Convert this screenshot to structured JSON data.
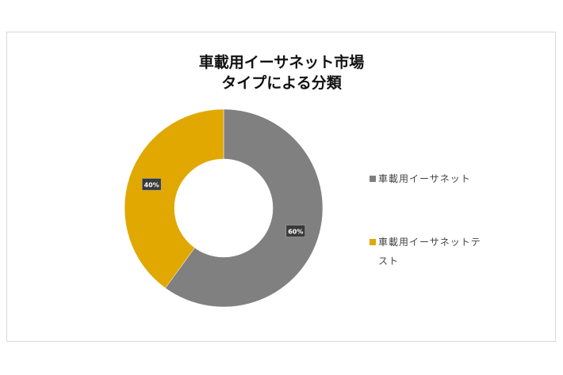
{
  "chart_data": {
    "type": "pie",
    "variant": "donut",
    "title_lines": [
      "車載用イーサネット市場",
      "タイプによる分類"
    ],
    "categories": [
      "車載用イーサネット",
      "車載用イーサネットテスト"
    ],
    "values": [
      60,
      40
    ],
    "data_labels": [
      "60%",
      "40%"
    ],
    "colors": [
      "#808080",
      "#E0A800"
    ],
    "legend_position": "right",
    "start_angle": "top, clockwise"
  }
}
